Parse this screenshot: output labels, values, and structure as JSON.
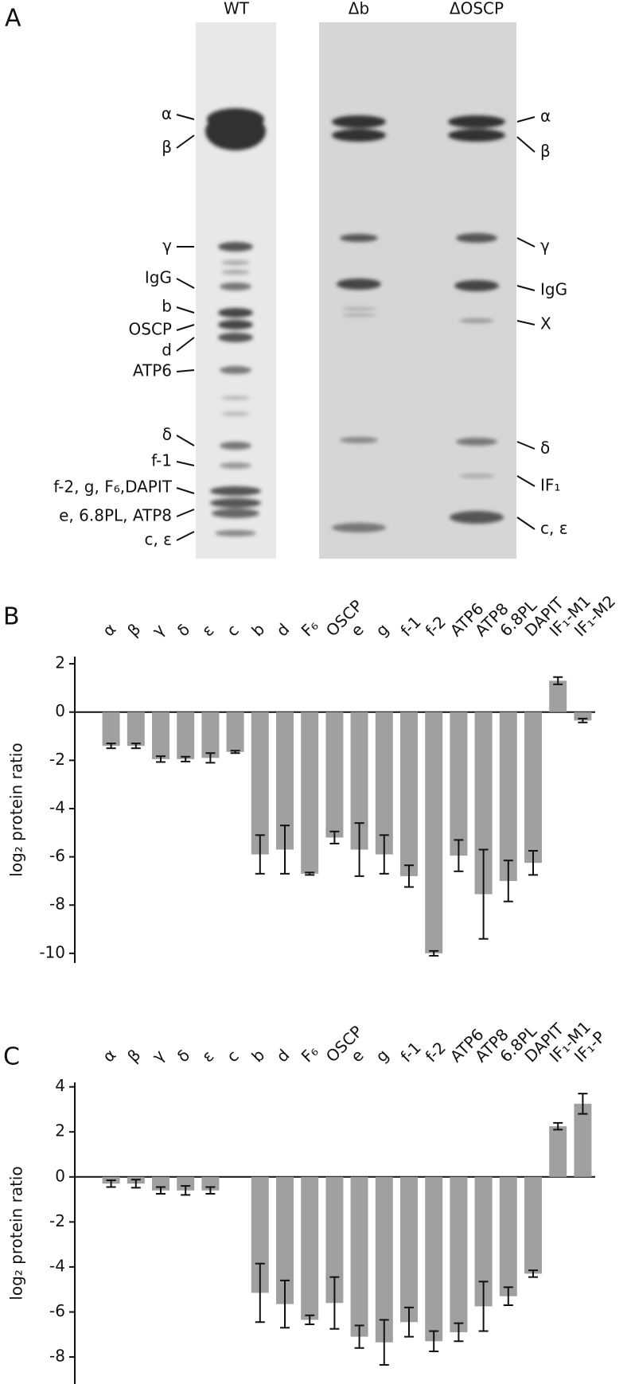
{
  "panel_a": {
    "panel_label": "A",
    "lanes": [
      "WT",
      "Δb",
      "ΔOSCP"
    ],
    "left_labels": [
      "α",
      "β",
      "γ",
      "IgG",
      "b",
      "OSCP",
      "d",
      "ATP6",
      "δ",
      "f-1",
      "f-2, g, F₆,DAPIT",
      "e, 6.8PL, ATP8",
      "c, ε"
    ],
    "right_labels": [
      "α",
      "β",
      "γ",
      "IgG",
      "X",
      "δ",
      "IF₁",
      "c, ε"
    ]
  },
  "chart_data": [
    {
      "type": "bar",
      "panel_label": "B",
      "y_label": "log₂ protein ratio",
      "color": "#a0a0a0",
      "categories": [
        "α",
        "β",
        "γ",
        "δ",
        "ε",
        "c",
        "b",
        "d",
        "F₆",
        "OSCP",
        "e",
        "g",
        "f-1",
        "f-2",
        "ATP6",
        "ATP8",
        "6.8PL",
        "DAPIT",
        "IF₁-M1",
        "IF₁-M2"
      ],
      "values": [
        -1.4,
        -1.4,
        -1.95,
        -1.95,
        -1.9,
        -1.65,
        -5.9,
        -5.7,
        -6.7,
        -5.2,
        -5.7,
        -5.9,
        -6.8,
        -10.0,
        -5.95,
        -7.55,
        -7.0,
        -6.25,
        1.3,
        -0.35
      ],
      "errors": [
        0.1,
        0.1,
        0.12,
        0.1,
        0.2,
        0.05,
        0.8,
        1.0,
        0.05,
        0.25,
        1.1,
        0.8,
        0.45,
        0.1,
        0.65,
        1.85,
        0.85,
        0.5,
        0.15,
        0.08
      ],
      "ylim": [
        -10.4,
        2.3
      ],
      "yticks": [
        2,
        0,
        -2,
        -4,
        -6,
        -8,
        -10
      ]
    },
    {
      "type": "bar",
      "panel_label": "C",
      "y_label": "log₂ protein ratio",
      "color": "#a0a0a0",
      "categories": [
        "α",
        "β",
        "γ",
        "δ",
        "ε",
        "c",
        "b",
        "d",
        "F₆",
        "OSCP",
        "e",
        "g",
        "f-1",
        "f-2",
        "ATP6",
        "ATP8",
        "6.8PL",
        "DAPIT",
        "IF₁-M1",
        "IF₁-P"
      ],
      "values": [
        -0.3,
        -0.3,
        -0.6,
        -0.6,
        -0.6,
        null,
        -5.15,
        -5.65,
        -6.35,
        -5.6,
        -7.1,
        -7.35,
        -6.45,
        -7.3,
        -6.9,
        -5.75,
        -5.3,
        -4.3,
        2.25,
        3.25
      ],
      "errors": [
        0.15,
        0.18,
        0.15,
        0.2,
        0.15,
        null,
        1.3,
        1.05,
        0.2,
        1.15,
        0.5,
        1.0,
        0.65,
        0.45,
        0.4,
        1.1,
        0.4,
        0.15,
        0.15,
        0.45
      ],
      "ylim": [
        -9.2,
        4.2
      ],
      "yticks": [
        4,
        2,
        0,
        -2,
        -4,
        -6,
        -8
      ]
    }
  ]
}
